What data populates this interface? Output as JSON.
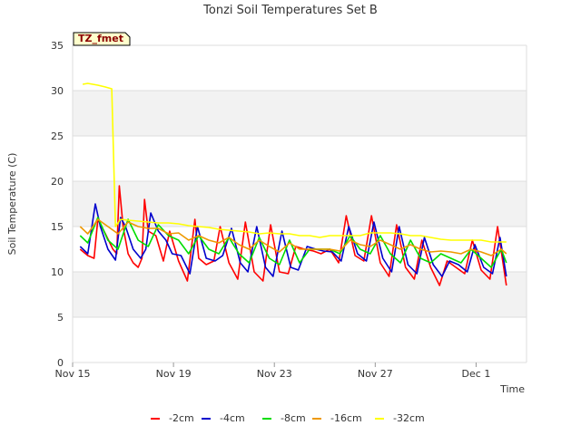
{
  "chart_data": {
    "type": "line",
    "title": "Tonzi Soil Temperatures Set B",
    "xlabel": "Time",
    "ylabel": "Soil Temperature (C)",
    "badge": "TZ_fmet",
    "xlim": [
      0,
      18
    ],
    "ylim": [
      0,
      35
    ],
    "x_ticks": [
      {
        "label": "Nov 15",
        "x": 0
      },
      {
        "label": "Nov 19",
        "x": 4
      },
      {
        "label": "Nov 23",
        "x": 8
      },
      {
        "label": "Nov 27",
        "x": 12
      },
      {
        "label": "Dec 1",
        "x": 16
      }
    ],
    "y_ticks": [
      0,
      5,
      10,
      15,
      20,
      25,
      30,
      35
    ],
    "grid": true,
    "legend_position": "bottom",
    "x_units": "days since Nov 15",
    "series": [
      {
        "name": "-2cm",
        "color": "#ff0000",
        "x": [
          0.3,
          0.6,
          0.85,
          1.0,
          1.3,
          1.6,
          1.75,
          1.85,
          2.0,
          2.2,
          2.4,
          2.6,
          2.75,
          2.85,
          3.0,
          3.3,
          3.6,
          3.85,
          4.2,
          4.55,
          4.85,
          5.0,
          5.3,
          5.6,
          5.85,
          6.2,
          6.55,
          6.85,
          7.2,
          7.55,
          7.85,
          8.2,
          8.55,
          8.85,
          9.2,
          9.55,
          9.85,
          10.2,
          10.55,
          10.85,
          11.2,
          11.55,
          11.85,
          12.2,
          12.55,
          12.85,
          13.2,
          13.55,
          13.85,
          14.2,
          14.55,
          14.85,
          15.2,
          15.55,
          15.85,
          16.2,
          16.55,
          16.85,
          17.2
        ],
        "y": [
          12.5,
          11.8,
          11.5,
          15.8,
          14.2,
          12.5,
          12.0,
          19.5,
          15.0,
          12.0,
          11.0,
          10.5,
          11.5,
          18.0,
          14.5,
          14.0,
          11.2,
          14.5,
          11.2,
          9.0,
          15.8,
          11.5,
          10.8,
          11.2,
          15.0,
          11.0,
          9.2,
          15.5,
          10.0,
          9.0,
          15.2,
          10.0,
          9.8,
          12.8,
          12.5,
          12.3,
          12.0,
          12.5,
          11.0,
          16.2,
          11.8,
          11.2,
          16.2,
          11.0,
          9.5,
          15.2,
          10.5,
          9.2,
          13.5,
          10.5,
          8.5,
          11.2,
          10.5,
          9.8,
          13.5,
          10.2,
          9.2,
          15.0,
          8.5
        ]
      },
      {
        "name": "-4cm",
        "color": "#0000cc",
        "x": [
          0.3,
          0.6,
          0.9,
          1.1,
          1.4,
          1.7,
          1.9,
          2.1,
          2.4,
          2.7,
          2.9,
          3.1,
          3.4,
          3.7,
          3.95,
          4.3,
          4.65,
          4.95,
          5.3,
          5.65,
          5.95,
          6.3,
          6.65,
          6.95,
          7.3,
          7.65,
          7.95,
          8.3,
          8.65,
          8.95,
          9.3,
          9.65,
          9.95,
          10.3,
          10.65,
          10.95,
          11.3,
          11.65,
          11.95,
          12.3,
          12.65,
          12.95,
          13.3,
          13.65,
          13.95,
          14.3,
          14.65,
          14.95,
          15.3,
          15.65,
          15.95,
          16.3,
          16.65,
          16.95,
          17.2
        ],
        "y": [
          12.8,
          12.0,
          17.5,
          15.0,
          12.5,
          11.3,
          16.0,
          15.0,
          12.5,
          11.5,
          12.5,
          16.5,
          14.5,
          13.5,
          12.0,
          11.8,
          9.8,
          15.0,
          11.5,
          11.2,
          11.8,
          14.8,
          11.0,
          10.0,
          15.0,
          10.5,
          9.5,
          14.5,
          10.5,
          10.2,
          12.8,
          12.5,
          12.3,
          12.2,
          11.2,
          15.0,
          12.0,
          11.2,
          15.5,
          11.5,
          10.0,
          15.0,
          10.8,
          9.8,
          13.8,
          10.8,
          9.5,
          11.2,
          10.8,
          10.0,
          13.0,
          10.5,
          9.8,
          13.8,
          9.5
        ]
      },
      {
        "name": "-8cm",
        "color": "#00dd00",
        "x": [
          0.3,
          0.6,
          1.0,
          1.4,
          1.8,
          2.2,
          2.6,
          3.0,
          3.4,
          3.8,
          4.2,
          4.6,
          5.0,
          5.4,
          5.8,
          6.2,
          6.6,
          7.0,
          7.4,
          7.8,
          8.2,
          8.6,
          9.0,
          9.4,
          9.8,
          10.2,
          10.6,
          11.0,
          11.4,
          11.8,
          12.2,
          12.6,
          13.0,
          13.4,
          13.8,
          14.2,
          14.6,
          15.0,
          15.4,
          15.8,
          16.2,
          16.6,
          17.0,
          17.2
        ],
        "y": [
          14.0,
          13.2,
          16.0,
          13.5,
          12.5,
          15.8,
          13.5,
          12.8,
          15.2,
          14.0,
          13.5,
          12.0,
          14.0,
          12.5,
          12.0,
          13.8,
          12.0,
          11.0,
          13.8,
          11.5,
          10.8,
          13.5,
          11.0,
          12.5,
          12.5,
          12.5,
          12.0,
          14.0,
          12.5,
          12.0,
          14.0,
          12.0,
          11.0,
          13.5,
          11.5,
          11.0,
          12.0,
          11.5,
          11.0,
          12.5,
          11.5,
          10.5,
          12.5,
          11.0
        ]
      },
      {
        "name": "-16cm",
        "color": "#ee9900",
        "x": [
          0.3,
          0.6,
          1.0,
          1.4,
          1.8,
          2.2,
          2.6,
          3.0,
          3.4,
          3.8,
          4.2,
          4.6,
          5.0,
          5.4,
          5.8,
          6.2,
          6.6,
          7.0,
          7.4,
          7.8,
          8.2,
          8.6,
          9.0,
          9.4,
          9.8,
          10.2,
          10.6,
          11.0,
          11.4,
          11.8,
          12.2,
          12.6,
          13.0,
          13.4,
          13.8,
          14.2,
          14.6,
          15.0,
          15.4,
          15.8,
          16.2,
          16.6,
          17.0,
          17.2
        ],
        "y": [
          15.0,
          14.2,
          15.8,
          15.0,
          14.2,
          15.5,
          15.0,
          14.8,
          14.8,
          14.2,
          14.3,
          13.5,
          14.0,
          13.5,
          13.2,
          13.8,
          13.0,
          12.5,
          13.5,
          12.8,
          12.2,
          13.2,
          12.5,
          12.5,
          12.5,
          12.5,
          12.3,
          13.5,
          13.0,
          12.8,
          13.5,
          13.0,
          12.5,
          13.0,
          12.5,
          12.2,
          12.3,
          12.2,
          12.0,
          12.5,
          12.2,
          11.8,
          12.5,
          12.0
        ]
      },
      {
        "name": "-32cm",
        "color": "#ffff00",
        "x": [
          0.4,
          0.6,
          1.0,
          1.3,
          1.55,
          1.7,
          1.9,
          2.2,
          2.6,
          3.0,
          3.4,
          3.8,
          4.2,
          4.6,
          5.0,
          5.4,
          5.8,
          6.2,
          6.6,
          7.0,
          7.4,
          7.8,
          8.2,
          8.6,
          9.0,
          9.4,
          9.8,
          10.2,
          10.6,
          11.0,
          11.4,
          11.8,
          12.2,
          12.6,
          13.0,
          13.4,
          13.8,
          14.2,
          14.6,
          15.0,
          15.4,
          15.8,
          16.2,
          16.6,
          17.0,
          17.2
        ],
        "y": [
          30.7,
          30.8,
          30.6,
          30.4,
          30.2,
          15.0,
          15.8,
          15.7,
          15.6,
          15.5,
          15.4,
          15.4,
          15.3,
          15.1,
          15.0,
          14.9,
          14.7,
          14.6,
          14.5,
          14.4,
          14.2,
          14.3,
          14.2,
          14.2,
          14.0,
          14.0,
          13.8,
          14.0,
          14.0,
          14.0,
          14.0,
          14.3,
          14.3,
          14.3,
          14.2,
          14.0,
          14.0,
          13.8,
          13.6,
          13.5,
          13.5,
          13.5,
          13.5,
          13.3,
          13.3,
          13.3
        ]
      }
    ]
  }
}
